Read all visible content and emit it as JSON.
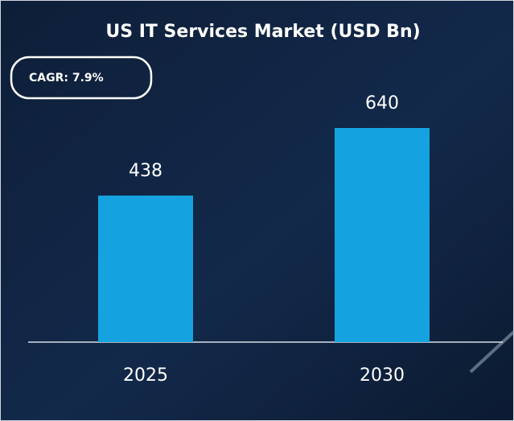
{
  "chart_data": {
    "type": "bar",
    "title": "US IT Services Market (USD Bn)",
    "annotation": "CAGR: 7.9%",
    "categories": [
      "2025",
      "2030"
    ],
    "values": [
      438,
      640
    ],
    "color": "#14a3e0"
  }
}
